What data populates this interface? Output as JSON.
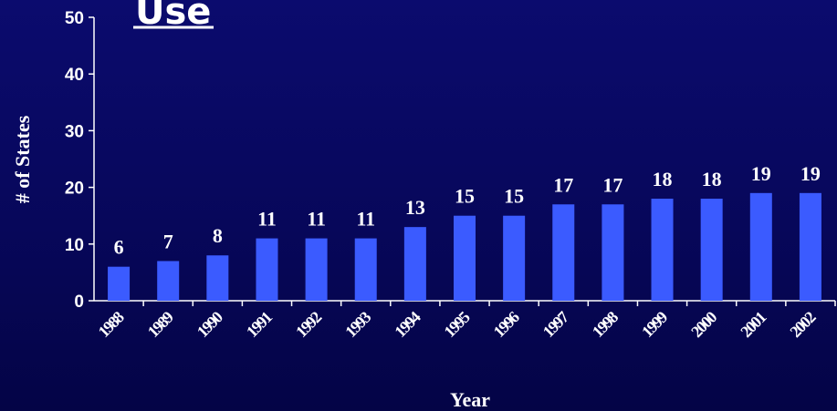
{
  "chart_data": {
    "type": "bar",
    "title": "Use",
    "xlabel": "Year",
    "ylabel": "# of States",
    "categories": [
      "1988",
      "1989",
      "1990",
      "1991",
      "1992",
      "1993",
      "1994",
      "1995",
      "1996",
      "1997",
      "1998",
      "1999",
      "2000",
      "2001",
      "2002"
    ],
    "values": [
      6,
      7,
      8,
      11,
      11,
      11,
      13,
      15,
      15,
      17,
      17,
      18,
      18,
      19,
      19
    ],
    "ylim": [
      0,
      50
    ],
    "yticks": [
      "0",
      "10",
      "20",
      "30",
      "40",
      "50"
    ],
    "grid": false,
    "bar_color": "#3b5bff",
    "background_color": "#07075a",
    "text_color": "#ffffff"
  }
}
